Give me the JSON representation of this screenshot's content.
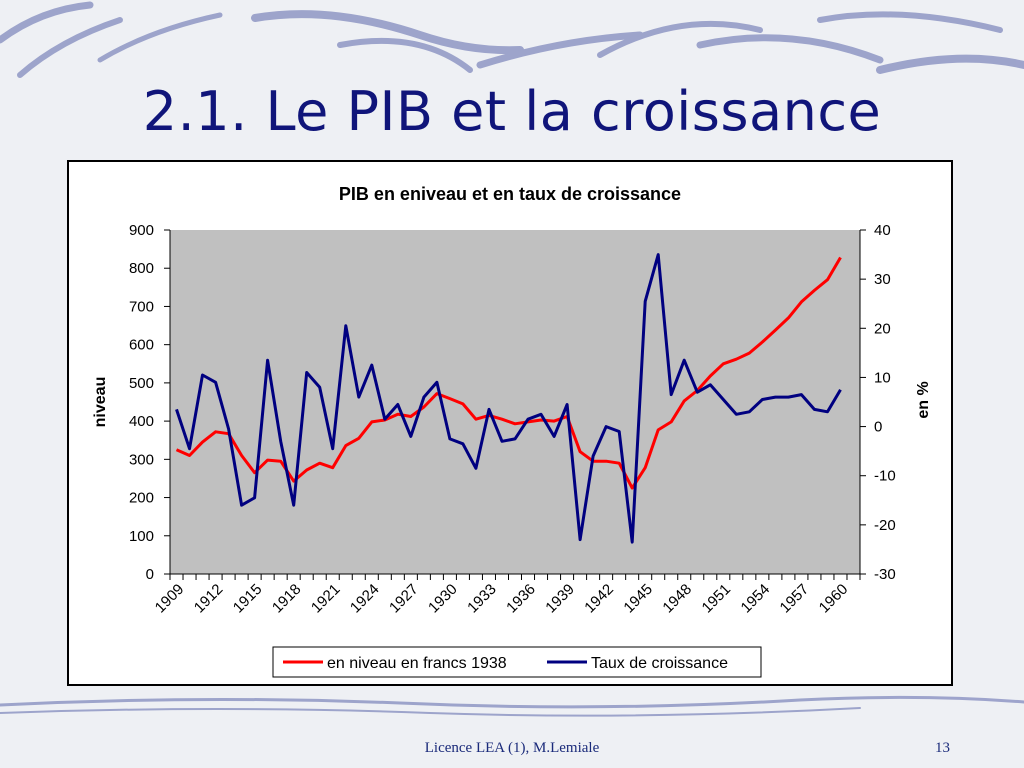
{
  "slide": {
    "title": "2.1. Le PIB et la croissance",
    "footer": "Licence LEA (1), M.Lemiale",
    "page_number": "13"
  },
  "colors": {
    "title": "#10157a",
    "series_level": "#ff0000",
    "series_growth": "#000080",
    "plot_bg": "#c0c0c0"
  },
  "chart_data": {
    "type": "line",
    "title": "PIB en eniveau et en taux de croissance",
    "ylabel": "niveau",
    "y2label": "en %",
    "ylim": [
      0,
      900
    ],
    "y2lim": [
      -30,
      40
    ],
    "yticks": [
      0,
      100,
      200,
      300,
      400,
      500,
      600,
      700,
      800,
      900
    ],
    "y2ticks": [
      -30,
      -20,
      -10,
      0,
      10,
      20,
      30,
      40
    ],
    "x": [
      1909,
      1910,
      1911,
      1912,
      1913,
      1914,
      1915,
      1916,
      1917,
      1918,
      1919,
      1920,
      1921,
      1922,
      1923,
      1924,
      1925,
      1926,
      1927,
      1928,
      1929,
      1930,
      1931,
      1932,
      1933,
      1934,
      1935,
      1936,
      1937,
      1938,
      1939,
      1940,
      1941,
      1942,
      1943,
      1944,
      1945,
      1946,
      1947,
      1948,
      1949,
      1950,
      1951,
      1952,
      1953,
      1954,
      1955,
      1956,
      1957,
      1958,
      1959,
      1960,
      1961
    ],
    "xtick_labels": [
      "1909",
      "1912",
      "1915",
      "1918",
      "1921",
      "1924",
      "1927",
      "1930",
      "1933",
      "1936",
      "1939",
      "1942",
      "1945",
      "1948",
      "1951",
      "1954",
      "1957",
      "1960"
    ],
    "legend_position": "bottom",
    "grid": false,
    "series": [
      {
        "name": "en niveau en francs 1938",
        "axis": "left",
        "values": [
          325,
          310,
          345,
          372,
          367,
          310,
          265,
          298,
          295,
          243,
          272,
          290,
          278,
          336,
          355,
          398,
          403,
          418,
          412,
          437,
          472,
          459,
          445,
          405,
          415,
          405,
          393,
          398,
          403,
          400,
          412,
          320,
          295,
          295,
          290,
          225,
          278,
          377,
          398,
          453,
          480,
          518,
          550,
          562,
          578,
          607,
          638,
          670,
          712,
          742,
          770,
          828,
          null
        ]
      },
      {
        "name": "Taux de croissance",
        "axis": "right",
        "values": [
          3.5,
          -4.5,
          10.5,
          9,
          -0.5,
          -16,
          -14.5,
          13.5,
          -3,
          -16,
          11,
          8,
          -4.5,
          20.5,
          6,
          12.5,
          1.5,
          4.5,
          -2,
          6,
          9,
          -2.5,
          -3.5,
          -8.5,
          3.5,
          -3,
          -2.5,
          1.5,
          2.5,
          -2,
          4.5,
          -23,
          -6,
          0,
          -1,
          -23.5,
          25.5,
          35,
          6.5,
          13.5,
          7,
          8.5,
          5.5,
          2.5,
          3,
          5.5,
          6,
          6,
          6.5,
          3.5,
          3,
          7.5,
          null
        ]
      }
    ]
  }
}
